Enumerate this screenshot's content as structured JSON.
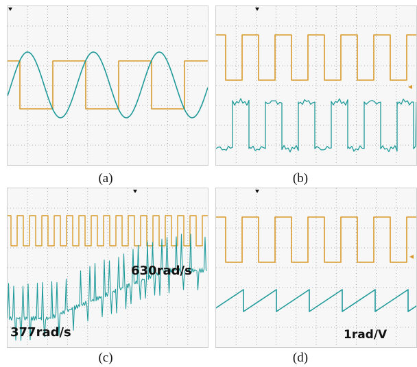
{
  "panels": [
    {
      "id": "a",
      "caption": "(a)",
      "annotations": []
    },
    {
      "id": "b",
      "caption": "(b)",
      "annotations": []
    },
    {
      "id": "c",
      "caption": "(c)",
      "annotations": [
        "630rad/s",
        "377rad/s"
      ]
    },
    {
      "id": "d",
      "caption": "(d)",
      "annotations": [
        "1rad/V"
      ]
    }
  ],
  "colors": {
    "orange": "#d89a2a",
    "teal": "#1f9a9a",
    "grid": "#9a9a9a",
    "background": "#f7f7f7"
  }
}
